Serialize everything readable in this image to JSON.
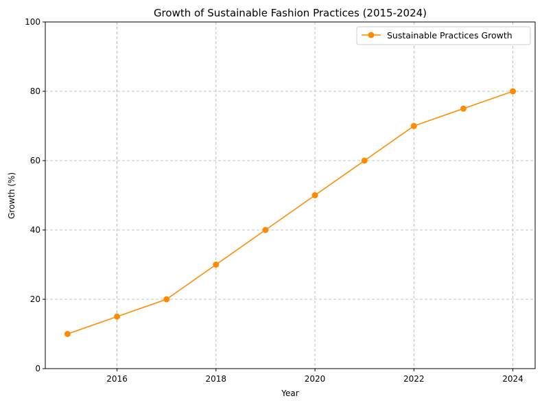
{
  "chart_data": {
    "type": "line",
    "title": "Growth of Sustainable Fashion Practices (2015-2024)",
    "xlabel": "Year",
    "ylabel": "Growth (%)",
    "x": [
      2015,
      2016,
      2017,
      2018,
      2019,
      2020,
      2021,
      2022,
      2023,
      2024
    ],
    "series": [
      {
        "name": "Sustainable Practices Growth",
        "values": [
          10,
          15,
          20,
          30,
          40,
          50,
          60,
          70,
          75,
          80
        ],
        "color": "#ff8c00",
        "marker": "circle"
      }
    ],
    "xlim": [
      2014.55,
      2024.45
    ],
    "ylim": [
      0,
      100
    ],
    "xticks": [
      2016,
      2018,
      2020,
      2022,
      2024
    ],
    "yticks": [
      0,
      20,
      40,
      60,
      80,
      100
    ],
    "grid": true,
    "legend": "top-right"
  }
}
